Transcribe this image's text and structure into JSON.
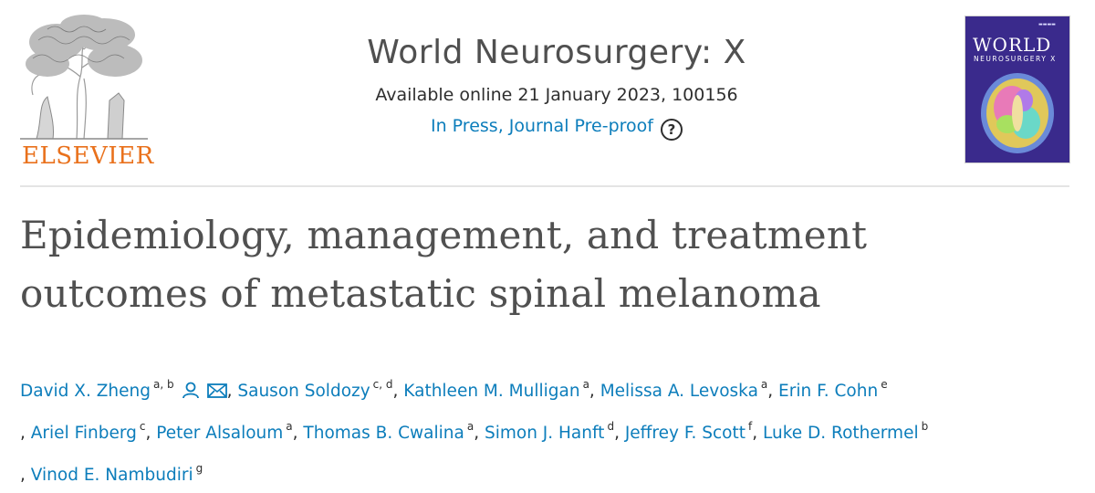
{
  "publisher": {
    "name": "ELSEVIER",
    "logo_icon": "elsevier-tree-icon"
  },
  "journal": {
    "title": "World Neurosurgery: X",
    "availability": "Available online 21 January 2023, 100156",
    "status": "In Press, Journal Pre-proof",
    "help_icon": "question-circle-icon",
    "cover": {
      "title": "WORLD",
      "subtitle": "NEUROSURGERY X"
    }
  },
  "article": {
    "title_line1": "Epidemiology, management, and treatment",
    "title_line2": "outcomes of metastatic spinal melanoma"
  },
  "authors": [
    {
      "name": "David X. Zheng",
      "aff": "a, b",
      "icons": [
        "person-icon",
        "mail-icon"
      ]
    },
    {
      "name": "Sauson Soldozy",
      "aff": "c, d"
    },
    {
      "name": "Kathleen M. Mulligan",
      "aff": "a"
    },
    {
      "name": "Melissa A. Levoska",
      "aff": "a"
    },
    {
      "name": "Erin F. Cohn",
      "aff": "e"
    },
    {
      "name": "Ariel Finberg",
      "aff": "c"
    },
    {
      "name": "Peter Alsaloum",
      "aff": "a"
    },
    {
      "name": "Thomas B. Cwalina",
      "aff": "a"
    },
    {
      "name": "Simon J. Hanft",
      "aff": "d"
    },
    {
      "name": "Jeffrey F. Scott",
      "aff": "f"
    },
    {
      "name": "Luke D. Rothermel",
      "aff": "b"
    },
    {
      "name": "Vinod E. Nambudiri",
      "aff": "g"
    }
  ],
  "separator": ","
}
